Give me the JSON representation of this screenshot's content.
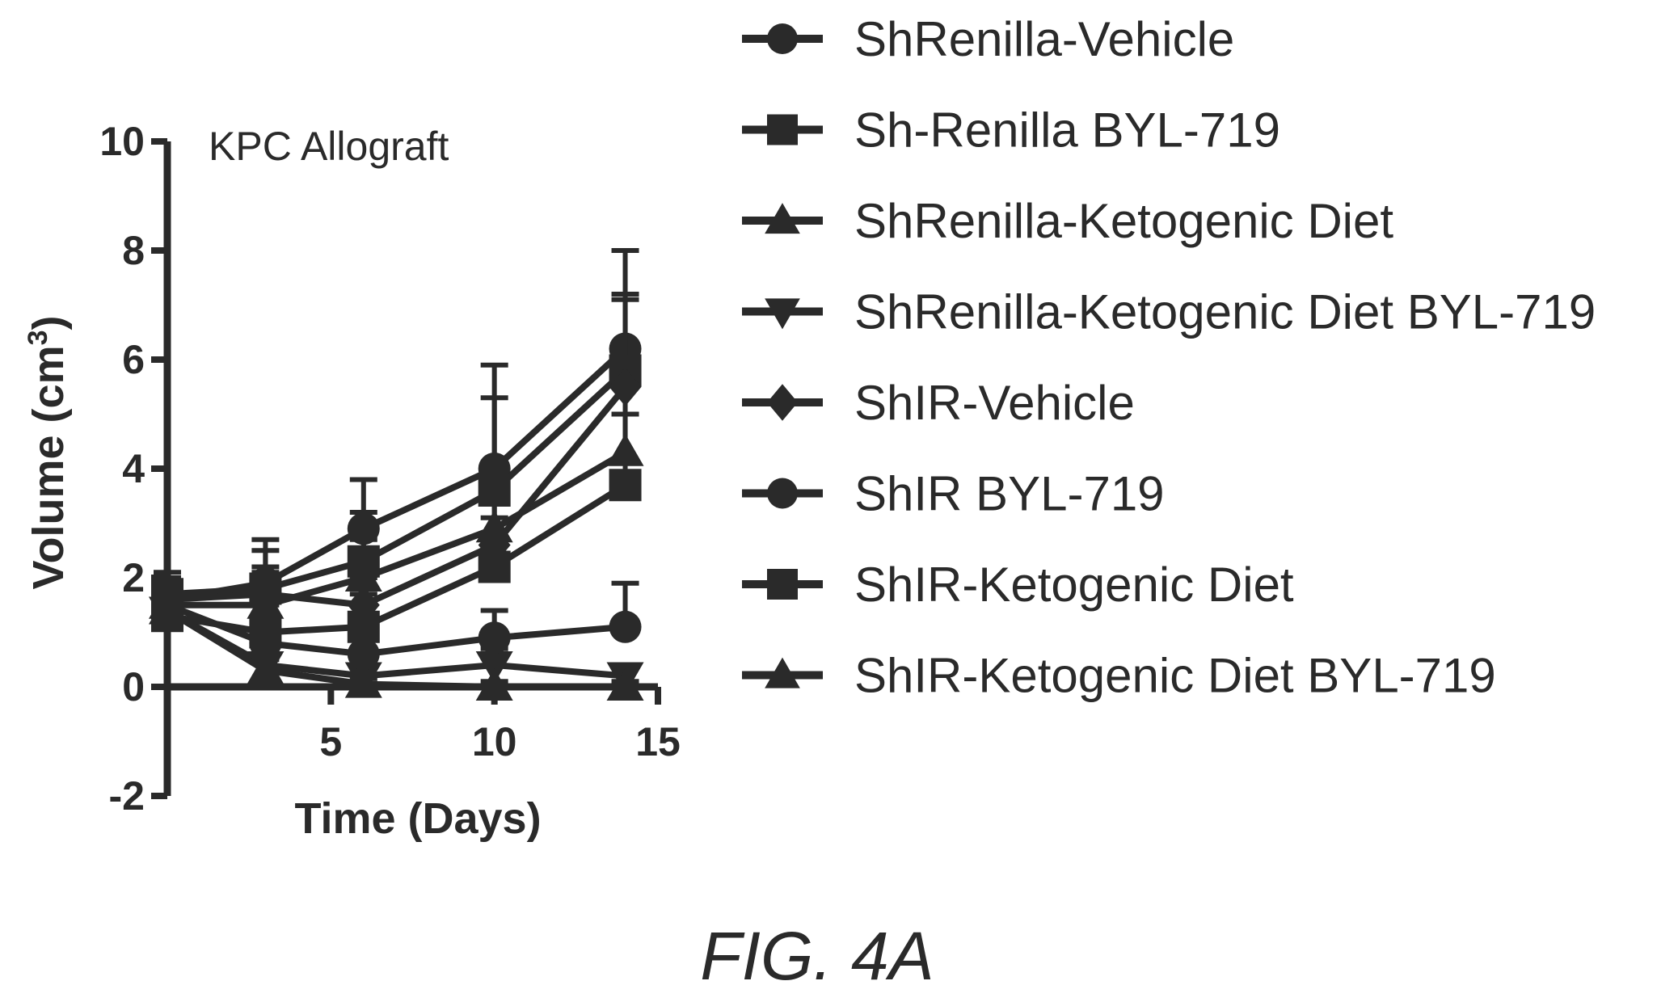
{
  "figure_label": "FIG. 4A",
  "chart_data": {
    "type": "line",
    "title": "KPC Allograft",
    "xlabel": "Time (Days)",
    "ylabel": "Volume (cm",
    "ylabel_sup": "3",
    "ylabel_close": ")",
    "xlim": [
      0,
      15
    ],
    "ylim": [
      -2,
      10
    ],
    "xticks": [
      "5",
      "10",
      "15"
    ],
    "yticks": [
      "-2",
      "0",
      "2",
      "4",
      "6",
      "8",
      "10"
    ],
    "x": [
      0,
      3,
      6,
      10,
      14
    ],
    "grid": false,
    "legend_position": "right",
    "series": [
      {
        "name": "ShRenilla-Vehicle",
        "marker": "circle",
        "values": [
          1.6,
          1.9,
          2.9,
          4.0,
          6.2
        ],
        "error": [
          0.4,
          0.8,
          0.9,
          1.9,
          1.8
        ]
      },
      {
        "name": "Sh-Renilla BYL-719",
        "marker": "square",
        "values": [
          1.7,
          1.8,
          2.3,
          3.6,
          5.8
        ],
        "error": [
          0.4,
          0.7,
          0.9,
          1.7,
          1.4
        ]
      },
      {
        "name": "ShRenilla-Ketogenic Diet",
        "marker": "triangle-up",
        "values": [
          1.5,
          1.5,
          2.0,
          2.9,
          4.3
        ],
        "error": [
          0.4,
          0.6,
          0.7,
          1.2,
          1.3
        ]
      },
      {
        "name": "ShRenilla-Ketogenic Diet BYL-719",
        "marker": "triangle-down",
        "values": [
          1.4,
          0.4,
          0.2,
          0.4,
          0.2
        ],
        "error": [
          0.4,
          0.3,
          0.2,
          0.3,
          0.2
        ]
      },
      {
        "name": "ShIR-Vehicle",
        "marker": "diamond",
        "values": [
          1.6,
          1.7,
          1.5,
          2.6,
          5.5
        ],
        "error": [
          0.4,
          0.5,
          0.5,
          1.0,
          1.6
        ]
      },
      {
        "name": "ShIR BYL-719",
        "marker": "circle",
        "values": [
          1.5,
          0.8,
          0.6,
          0.9,
          1.1
        ],
        "error": [
          0.4,
          0.4,
          0.3,
          0.5,
          0.8
        ]
      },
      {
        "name": "ShIR-Ketogenic Diet",
        "marker": "square",
        "values": [
          1.3,
          1.0,
          1.1,
          2.2,
          3.7
        ],
        "error": [
          0.5,
          0.5,
          0.6,
          0.9,
          1.3
        ]
      },
      {
        "name": "ShIR-Ketogenic Diet BYL-719",
        "marker": "triangle-up",
        "values": [
          1.4,
          0.3,
          0.05,
          0.0,
          0.0
        ],
        "error": [
          0.4,
          0.2,
          0.1,
          0.1,
          0.1
        ]
      }
    ]
  }
}
